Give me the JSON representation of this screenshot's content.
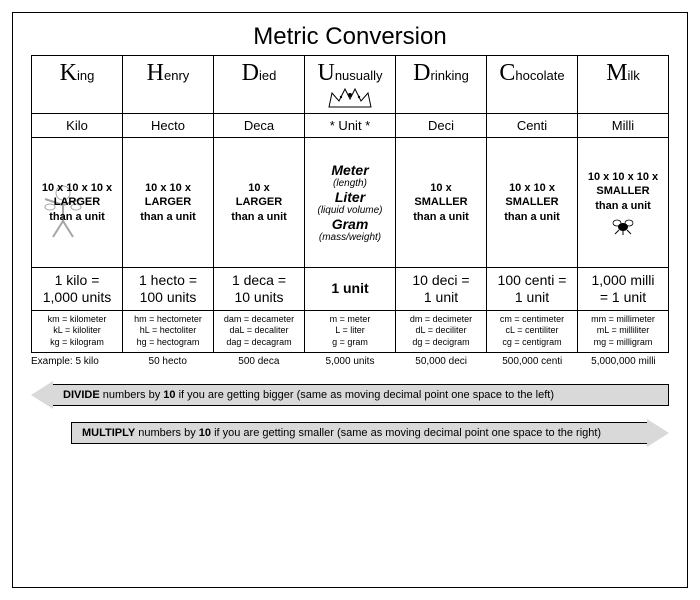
{
  "title": "Metric Conversion",
  "colors": {
    "border": "#000000",
    "background": "#ffffff",
    "arrow_fill": "#d9d9d9"
  },
  "columns": [
    {
      "mnemonic_cap": "K",
      "mnemonic_rest": "ing",
      "prefix": "Kilo",
      "scale_line1": "10 x 10 x 10 x",
      "scale_line2": "LARGER",
      "scale_line3": "than a unit",
      "equiv_line1": "1 kilo =",
      "equiv_line2": "1,000 units",
      "abbrevs": [
        "km = kilometer",
        "kL = kiloliter",
        "kg = kilogram"
      ],
      "icon": "strongman"
    },
    {
      "mnemonic_cap": "H",
      "mnemonic_rest": "enry",
      "prefix": "Hecto",
      "scale_line1": "10 x 10 x",
      "scale_line2": "LARGER",
      "scale_line3": "than a unit",
      "equiv_line1": "1 hecto =",
      "equiv_line2": "100 units",
      "abbrevs": [
        "hm = hectometer",
        "hL = hectoliter",
        "hg = hectogram"
      ],
      "icon": "none"
    },
    {
      "mnemonic_cap": "D",
      "mnemonic_rest": "ied",
      "prefix": "Deca",
      "scale_line1": "10 x",
      "scale_line2": "LARGER",
      "scale_line3": "than a unit",
      "equiv_line1": "1 deca =",
      "equiv_line2": "10 units",
      "abbrevs": [
        "dam = decameter",
        "daL = decaliter",
        "dag = decagram"
      ],
      "icon": "none"
    },
    {
      "mnemonic_cap": "U",
      "mnemonic_rest": "nusually",
      "prefix": "* Unit *",
      "unit_lines": [
        {
          "t": "Meter",
          "style": "bold"
        },
        {
          "t": "(length)",
          "style": "italic"
        },
        {
          "t": "Liter",
          "style": "bold"
        },
        {
          "t": "(liquid volume)",
          "style": "italic"
        },
        {
          "t": "Gram",
          "style": "bold"
        },
        {
          "t": "(mass/weight)",
          "style": "italic"
        }
      ],
      "equiv_line1": "",
      "equiv_line2": "1 unit",
      "abbrevs": [
        "m = meter",
        "L = liter",
        "g = gram"
      ],
      "icon": "crown"
    },
    {
      "mnemonic_cap": "D",
      "mnemonic_rest": "rinking",
      "prefix": "Deci",
      "scale_line1": "10 x",
      "scale_line2": "SMALLER",
      "scale_line3": "than a unit",
      "equiv_line1": "10 deci =",
      "equiv_line2": "1 unit",
      "abbrevs": [
        "dm = decimeter",
        "dL = deciliter",
        "dg = decigram"
      ],
      "icon": "none"
    },
    {
      "mnemonic_cap": "C",
      "mnemonic_rest": "hocolate",
      "prefix": "Centi",
      "scale_line1": "10 x 10 x",
      "scale_line2": "SMALLER",
      "scale_line3": "than a unit",
      "equiv_line1": "100 centi =",
      "equiv_line2": "1 unit",
      "abbrevs": [
        "cm = centimeter",
        "cL = centiliter",
        "cg = centigram"
      ],
      "icon": "none"
    },
    {
      "mnemonic_cap": "M",
      "mnemonic_rest": "ilk",
      "prefix": "Milli",
      "scale_line1": "10 x 10 x 10 x",
      "scale_line2": "SMALLER",
      "scale_line3": "than a unit",
      "equiv_line1": "1,000 milli",
      "equiv_line2": "= 1 unit",
      "abbrevs": [
        "mm = millimeter",
        "mL = milliliter",
        "mg = milligram"
      ],
      "icon": "fly"
    }
  ],
  "examples": [
    "Example:  5 kilo",
    "50 hecto",
    "500 deca",
    "5,000 units",
    "50,000 deci",
    "500,000 centi",
    "5,000,000 milli"
  ],
  "arrows": {
    "divide": {
      "bold": "DIVIDE",
      "mid": " numbers by ",
      "ten": "10",
      "rest": " if you are getting bigger (same as moving decimal point one space to the left)"
    },
    "multiply": {
      "bold": "MULTIPLY",
      "mid": " numbers by ",
      "ten": "10",
      "rest": " if you are getting smaller (same as moving decimal point one space to the right)"
    }
  }
}
